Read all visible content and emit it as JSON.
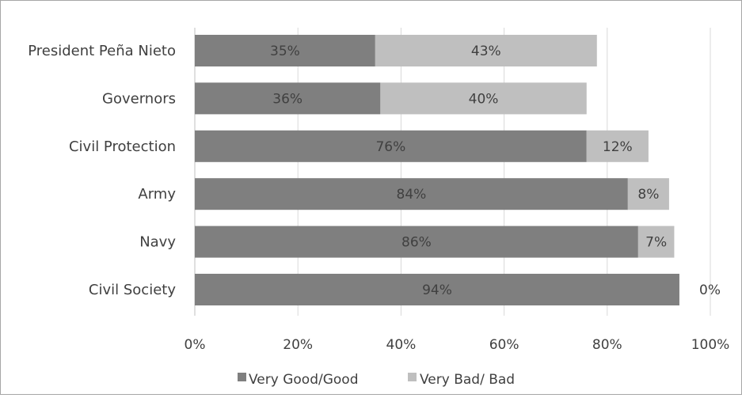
{
  "chart_data": {
    "type": "bar",
    "orientation": "horizontal",
    "stacked": true,
    "categories": [
      "President Peña Nieto",
      "Governors",
      "Civil Protection",
      "Army",
      "Navy",
      "Civil Society"
    ],
    "series": [
      {
        "name": "Very Good/Good",
        "color": "#7f7f7f",
        "values": [
          35,
          36,
          76,
          84,
          86,
          94
        ],
        "labels": [
          "35%",
          "36%",
          "76%",
          "84%",
          "86%",
          "94%"
        ]
      },
      {
        "name": "Very Bad/ Bad",
        "color": "#bfbfbf",
        "values": [
          43,
          40,
          12,
          8,
          7,
          0
        ],
        "labels": [
          "43%",
          "40%",
          "12%",
          "8%",
          "7%",
          "0%"
        ]
      }
    ],
    "xaxis": {
      "tick_labels": [
        "0%",
        "20%",
        "40%",
        "60%",
        "80%",
        "100%"
      ],
      "range": [
        0,
        100
      ]
    },
    "grid": "vertical",
    "legend": "bottom"
  }
}
